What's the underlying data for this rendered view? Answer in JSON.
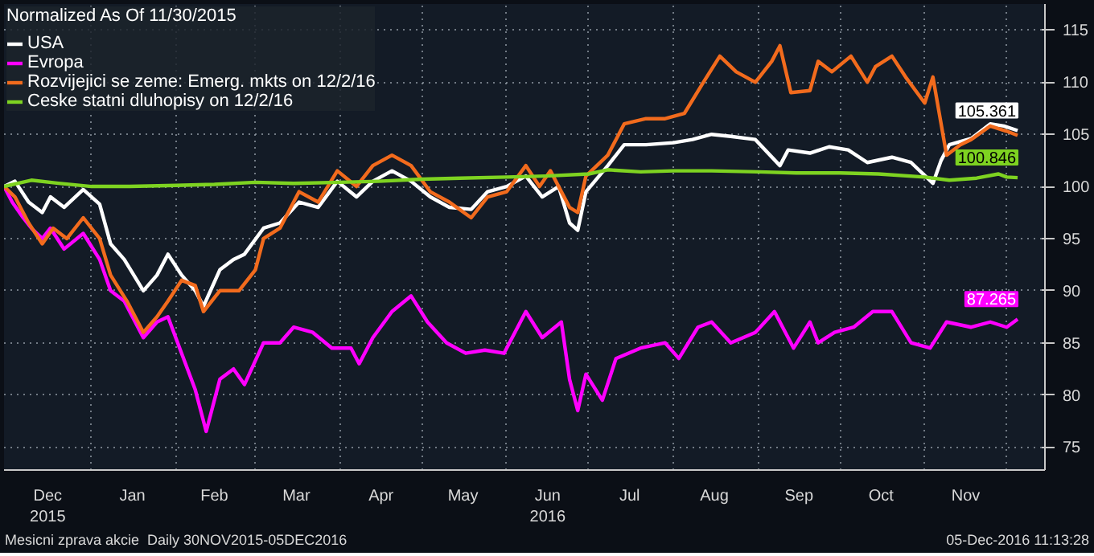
{
  "chart_data": {
    "type": "line",
    "legend_title": "Normalized As Of 11/30/2015",
    "legend": "top left",
    "grid": true,
    "line_style": "solid",
    "marker": "none",
    "xlim": [
      "2015-11-30",
      "2016-12-15"
    ],
    "ylim": [
      72.8,
      117.5
    ],
    "yticks": [
      75,
      80,
      85,
      90,
      95,
      100,
      105,
      110,
      115
    ],
    "xticks": [
      {
        "value": "2015-12-16",
        "label": "Dec\n2015"
      },
      {
        "value": "2016-01-01",
        "label": null
      },
      {
        "value": "2016-01-16",
        "label": "Jan"
      },
      {
        "value": "2016-02-01",
        "label": null
      },
      {
        "value": "2016-02-15",
        "label": "Feb"
      },
      {
        "value": "2016-03-01",
        "label": null
      },
      {
        "value": "2016-03-16",
        "label": "Mar"
      },
      {
        "value": "2016-04-01",
        "label": null
      },
      {
        "value": "2016-04-16",
        "label": "Apr"
      },
      {
        "value": "2016-05-01",
        "label": null
      },
      {
        "value": "2016-05-16",
        "label": "May"
      },
      {
        "value": "2016-06-01",
        "label": null
      },
      {
        "value": "2016-06-16",
        "label": "Jun\n2016"
      },
      {
        "value": "2016-07-01",
        "label": null
      },
      {
        "value": "2016-07-16",
        "label": "Jul"
      },
      {
        "value": "2016-08-01",
        "label": null
      },
      {
        "value": "2016-08-16",
        "label": "Aug"
      },
      {
        "value": "2016-09-01",
        "label": null
      },
      {
        "value": "2016-09-16",
        "label": "Sep"
      },
      {
        "value": "2016-10-01",
        "label": null
      },
      {
        "value": "2016-10-16",
        "label": "Oct"
      },
      {
        "value": "2016-11-01",
        "label": null
      },
      {
        "value": "2016-11-16",
        "label": "Nov"
      },
      {
        "value": "2016-12-01",
        "label": null
      }
    ],
    "series": [
      {
        "name": "USA",
        "color": "#ffffff",
        "x": [
          "2015-11-30",
          "2015-12-04",
          "2015-12-09",
          "2015-12-14",
          "2015-12-17",
          "2015-12-22",
          "2015-12-29",
          "2016-01-04",
          "2016-01-08",
          "2016-01-13",
          "2016-01-20",
          "2016-01-25",
          "2016-01-29",
          "2016-02-03",
          "2016-02-08",
          "2016-02-11",
          "2016-02-17",
          "2016-02-22",
          "2016-02-26",
          "2016-03-04",
          "2016-03-10",
          "2016-03-17",
          "2016-03-24",
          "2016-03-31",
          "2016-04-07",
          "2016-04-13",
          "2016-04-20",
          "2016-04-27",
          "2016-05-04",
          "2016-05-11",
          "2016-05-19",
          "2016-05-25",
          "2016-06-01",
          "2016-06-08",
          "2016-06-14",
          "2016-06-20",
          "2016-06-24",
          "2016-06-27",
          "2016-06-30",
          "2016-07-08",
          "2016-07-14",
          "2016-07-22",
          "2016-08-01",
          "2016-08-08",
          "2016-08-15",
          "2016-08-22",
          "2016-08-31",
          "2016-09-09",
          "2016-09-12",
          "2016-09-20",
          "2016-09-27",
          "2016-10-04",
          "2016-10-11",
          "2016-10-20",
          "2016-10-27",
          "2016-11-04",
          "2016-11-07",
          "2016-11-10",
          "2016-11-18",
          "2016-11-25",
          "2016-11-30",
          "2016-12-05"
        ],
        "values": [
          100,
          100.5,
          98.5,
          97.5,
          99,
          98,
          99.7,
          98.3,
          94.5,
          93,
          90,
          91.5,
          93.5,
          91.5,
          90,
          88.5,
          92,
          93,
          93.5,
          96,
          96.5,
          98.5,
          98,
          100.5,
          99,
          100.5,
          101.5,
          100.5,
          99,
          98,
          97.8,
          99.5,
          100,
          101,
          99,
          100,
          96.5,
          95.8,
          99.5,
          102,
          104,
          104,
          104.2,
          104.5,
          105,
          104.8,
          104.5,
          102,
          103.5,
          103.2,
          103.8,
          103.5,
          102.3,
          102.8,
          102.3,
          100.3,
          102.5,
          104,
          104.6,
          106,
          105.8,
          105.361
        ]
      },
      {
        "name": "Evropa",
        "color": "#ff00ff",
        "x": [
          "2015-11-30",
          "2015-12-03",
          "2015-12-07",
          "2015-12-10",
          "2015-12-14",
          "2015-12-17",
          "2015-12-22",
          "2015-12-29",
          "2016-01-04",
          "2016-01-08",
          "2016-01-13",
          "2016-01-20",
          "2016-01-25",
          "2016-01-29",
          "2016-02-03",
          "2016-02-08",
          "2016-02-12",
          "2016-02-17",
          "2016-02-22",
          "2016-02-26",
          "2016-03-04",
          "2016-03-10",
          "2016-03-15",
          "2016-03-22",
          "2016-03-29",
          "2016-04-05",
          "2016-04-08",
          "2016-04-13",
          "2016-04-20",
          "2016-04-27",
          "2016-05-03",
          "2016-05-10",
          "2016-05-17",
          "2016-05-24",
          "2016-05-31",
          "2016-06-08",
          "2016-06-14",
          "2016-06-21",
          "2016-06-24",
          "2016-06-27",
          "2016-06-30",
          "2016-07-06",
          "2016-07-11",
          "2016-07-20",
          "2016-07-29",
          "2016-08-03",
          "2016-08-10",
          "2016-08-15",
          "2016-08-22",
          "2016-08-31",
          "2016-09-07",
          "2016-09-14",
          "2016-09-20",
          "2016-09-23",
          "2016-09-29",
          "2016-10-06",
          "2016-10-13",
          "2016-10-20",
          "2016-10-27",
          "2016-11-03",
          "2016-11-09",
          "2016-11-18",
          "2016-11-25",
          "2016-12-01",
          "2016-12-05"
        ],
        "values": [
          100,
          98.5,
          97,
          96,
          95,
          96,
          94,
          95.5,
          93,
          90,
          89,
          85.5,
          87,
          87.5,
          84,
          80.5,
          76.5,
          81.5,
          82.5,
          81,
          85,
          85,
          86.5,
          86,
          84.5,
          84.5,
          83,
          85.5,
          88,
          89.5,
          87,
          85,
          84,
          84.3,
          84,
          88,
          85.5,
          87,
          81.5,
          78.5,
          82,
          79.5,
          83.5,
          84.5,
          85,
          83.5,
          86.5,
          87,
          85,
          86,
          88,
          84.5,
          87,
          85,
          86,
          86.5,
          88,
          88,
          85,
          84.5,
          87,
          86.5,
          87,
          86.5,
          87.265
        ]
      },
      {
        "name": "Rozvijejici se zeme: Emerg. mkts on 12/2/16",
        "color": "#f26b1d",
        "x": [
          "2015-11-30",
          "2015-12-04",
          "2015-12-09",
          "2015-12-14",
          "2015-12-18",
          "2015-12-23",
          "2015-12-29",
          "2016-01-04",
          "2016-01-08",
          "2016-01-14",
          "2016-01-20",
          "2016-01-25",
          "2016-01-29",
          "2016-02-03",
          "2016-02-08",
          "2016-02-11",
          "2016-02-17",
          "2016-02-24",
          "2016-03-01",
          "2016-03-04",
          "2016-03-10",
          "2016-03-17",
          "2016-03-24",
          "2016-03-31",
          "2016-04-07",
          "2016-04-13",
          "2016-04-20",
          "2016-04-27",
          "2016-05-04",
          "2016-05-11",
          "2016-05-19",
          "2016-05-25",
          "2016-06-01",
          "2016-06-08",
          "2016-06-13",
          "2016-06-17",
          "2016-06-24",
          "2016-06-27",
          "2016-06-30",
          "2016-07-08",
          "2016-07-14",
          "2016-07-22",
          "2016-07-29",
          "2016-08-05",
          "2016-08-12",
          "2016-08-18",
          "2016-08-24",
          "2016-08-31",
          "2016-09-06",
          "2016-09-09",
          "2016-09-13",
          "2016-09-20",
          "2016-09-23",
          "2016-09-28",
          "2016-10-05",
          "2016-10-11",
          "2016-10-14",
          "2016-10-20",
          "2016-10-25",
          "2016-11-01",
          "2016-11-04",
          "2016-11-09",
          "2016-11-14",
          "2016-11-18",
          "2016-11-25",
          "2016-12-01",
          "2016-12-05"
        ],
        "values": [
          100,
          99,
          96.5,
          94.5,
          96,
          95,
          97,
          95,
          91.5,
          89,
          86,
          87.5,
          89,
          91,
          90.5,
          88,
          90,
          90,
          92,
          95,
          96,
          99.5,
          98.5,
          101.5,
          100,
          102,
          103,
          102,
          99.5,
          98.5,
          97,
          99,
          99.5,
          102,
          100,
          101.5,
          98,
          97.5,
          101,
          103,
          106,
          106.5,
          106.5,
          107,
          110,
          112.5,
          111,
          110,
          112,
          113.5,
          109,
          109.2,
          112,
          111,
          112.5,
          110,
          111.5,
          112.5,
          110.5,
          108,
          110.5,
          103,
          104,
          104.5,
          105.8,
          105.3,
          104.9
        ]
      },
      {
        "name": "Ceske statni dluhopisy on 12/2/16",
        "color": "#7ed321",
        "x": [
          "2015-11-30",
          "2015-12-10",
          "2015-12-20",
          "2016-01-01",
          "2016-01-15",
          "2016-02-01",
          "2016-02-15",
          "2016-03-01",
          "2016-03-15",
          "2016-04-01",
          "2016-04-15",
          "2016-05-01",
          "2016-05-15",
          "2016-06-01",
          "2016-06-15",
          "2016-07-01",
          "2016-07-08",
          "2016-07-20",
          "2016-08-01",
          "2016-08-15",
          "2016-09-01",
          "2016-09-15",
          "2016-10-01",
          "2016-10-15",
          "2016-11-01",
          "2016-11-10",
          "2016-11-20",
          "2016-11-28",
          "2016-12-01",
          "2016-12-05"
        ],
        "values": [
          100,
          100.6,
          100.3,
          100,
          100,
          100.1,
          100.2,
          100.4,
          100.3,
          100.4,
          100.5,
          100.7,
          100.8,
          100.9,
          101,
          101.2,
          101.6,
          101.4,
          101.5,
          101.5,
          101.4,
          101.3,
          101.3,
          101.2,
          100.9,
          100.6,
          100.8,
          101.2,
          100.9,
          100.846
        ]
      }
    ],
    "annotations": [
      {
        "text": "105.361",
        "x": "2016-12-05",
        "y": 105.361
      },
      {
        "text": "100.846",
        "x": "2016-12-05",
        "y": 100.846
      },
      {
        "text": "87.265",
        "x": "2016-12-05",
        "y": 87.265
      },
      "Mesicni zprava akcie  Daily 30NOV2015-05DEC2016",
      "05-Dec-2016 11:13:28"
    ]
  }
}
